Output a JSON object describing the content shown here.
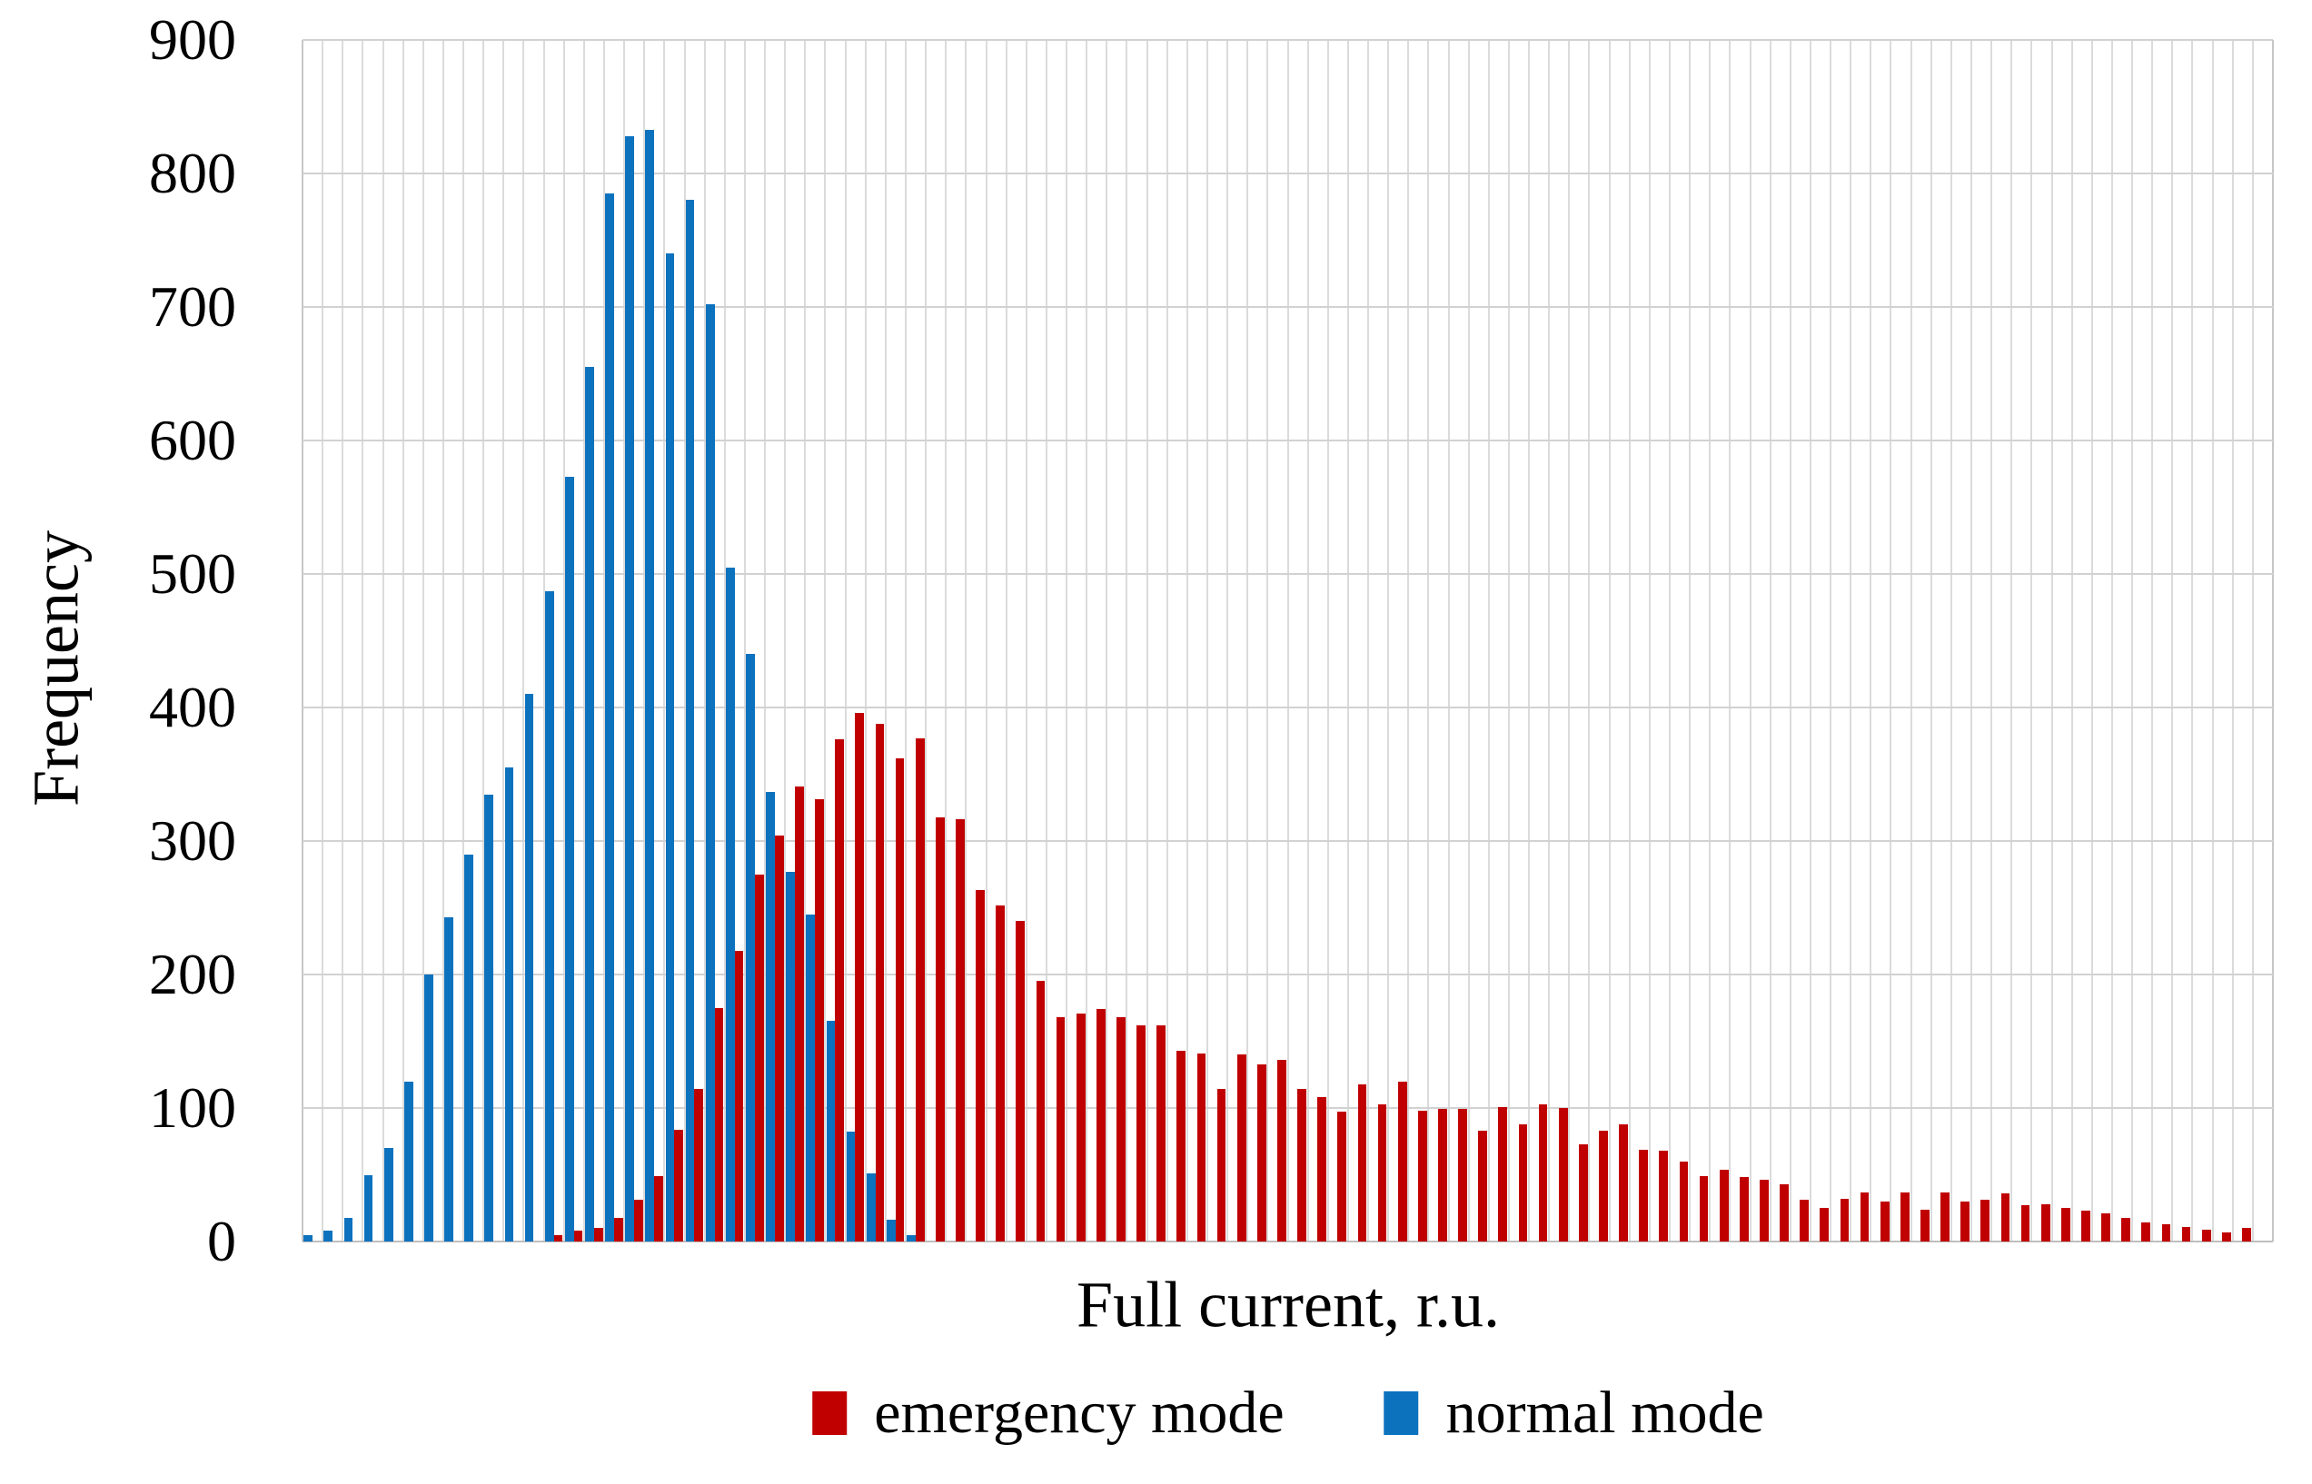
{
  "chart_data": {
    "type": "bar",
    "subtype": "clustered-histogram",
    "title": "",
    "xlabel": "Full current, r.u.",
    "ylabel": "Frequency",
    "ylim": [
      0,
      900
    ],
    "ytick_step": 100,
    "grid": "both",
    "legend_position": "bottom-center",
    "n_slots": 98,
    "background": "#ffffff",
    "gridline_color": "#d9d9d9",
    "series": [
      {
        "name": "emergency mode",
        "color": "#C00000",
        "start_slot": 12,
        "values": [
          5,
          8,
          10,
          18,
          31,
          49,
          84,
          114,
          175,
          218,
          275,
          304,
          341,
          331,
          376,
          396,
          388,
          362,
          377,
          318,
          316,
          263,
          252,
          240,
          195,
          168,
          171,
          174,
          168,
          162,
          162,
          143,
          141,
          114,
          140,
          133,
          136,
          114,
          108,
          97,
          118,
          103,
          120,
          98,
          99,
          99,
          83,
          101,
          88,
          103,
          100,
          73,
          83,
          88,
          69,
          68,
          60,
          49,
          54,
          48,
          46,
          43,
          31,
          25,
          32,
          37,
          30,
          37,
          24,
          37,
          30,
          31,
          36,
          27,
          28,
          25,
          23,
          21,
          18,
          14,
          13,
          11,
          9,
          7,
          10
        ]
      },
      {
        "name": "normal mode",
        "color": "#0D72BE",
        "start_slot": 0,
        "values": [
          5,
          8,
          18,
          50,
          70,
          120,
          200,
          243,
          290,
          335,
          355,
          410,
          487,
          573,
          655,
          785,
          828,
          833,
          740,
          780,
          702,
          505,
          440,
          337,
          277,
          245,
          165,
          82,
          51,
          16,
          5
        ]
      }
    ]
  },
  "axes": {
    "y_title": "Frequency",
    "x_title": "Full current, r.u.",
    "y_tick_labels": [
      "900",
      "800",
      "700",
      "600",
      "500",
      "400",
      "300",
      "200",
      "100",
      "0"
    ]
  },
  "legend": {
    "items": [
      {
        "label": "emergency mode",
        "color": "#C00000"
      },
      {
        "label": "normal mode",
        "color": "#0D72BE"
      }
    ]
  }
}
